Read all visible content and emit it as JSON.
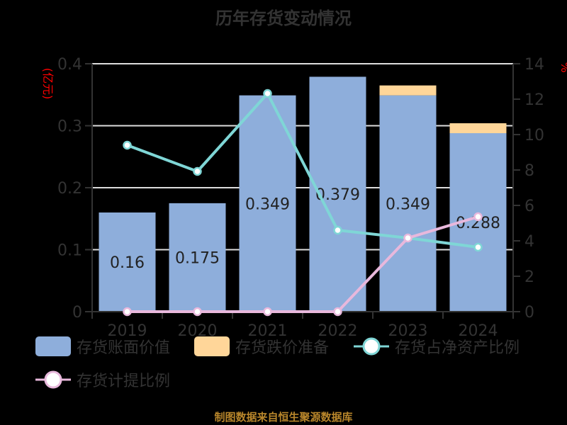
{
  "title": "历年存货变动情况",
  "source": "制图数据来自恒生聚源数据库",
  "left_axis": {
    "label": "(亿元)",
    "ticks": [
      "0",
      "0.1",
      "0.2",
      "0.3",
      "0.4"
    ],
    "color": "#FF0000"
  },
  "right_axis": {
    "label": "%",
    "ticks": [
      "0",
      "2",
      "4",
      "6",
      "8",
      "10",
      "12",
      "14"
    ],
    "color": "#FF0000"
  },
  "legend": [
    {
      "label": "存货账面价值",
      "type": "bar",
      "color": "#8EAEDB"
    },
    {
      "label": "存货跌价准备",
      "type": "bar",
      "color": "#FFD699"
    },
    {
      "label": "存货占净资产比例",
      "type": "line",
      "color": "#7FD6D6"
    },
    {
      "label": "存货计提比例",
      "type": "line",
      "color": "#E8B8DC"
    }
  ],
  "chart_data": {
    "type": "bar",
    "title": "历年存货变动情况",
    "xlabel": "",
    "ylabel": "(亿元)",
    "y2label": "%",
    "categories": [
      "2019",
      "2020",
      "2021",
      "2022",
      "2023",
      "2024"
    ],
    "ylim": [
      0,
      0.4
    ],
    "y2lim": [
      0,
      14
    ],
    "grid": true,
    "legend_position": "bottom",
    "series": [
      {
        "name": "存货账面价值",
        "type": "bar",
        "stack": "inv",
        "axis": "left",
        "color": "#8EAEDB",
        "values": [
          0.16,
          0.175,
          0.349,
          0.379,
          0.349,
          0.288
        ],
        "labels": [
          "0.16",
          "0.175",
          "0.349",
          "0.379",
          "0.349",
          "0.288"
        ]
      },
      {
        "name": "存货跌价准备",
        "type": "bar",
        "stack": "inv",
        "axis": "left",
        "color": "#FFD699",
        "values": [
          0,
          0,
          0,
          0,
          0.016,
          0.016
        ]
      },
      {
        "name": "存货占净资产比例",
        "type": "line",
        "axis": "right",
        "color": "#7FD6D6",
        "values": [
          9.4,
          7.92,
          12.32,
          4.6,
          4.16,
          3.64
        ]
      },
      {
        "name": "存货计提比例",
        "type": "line",
        "axis": "right",
        "color": "#E8B8DC",
        "values": [
          0,
          0,
          0,
          0,
          4.16,
          5.36
        ]
      }
    ]
  }
}
